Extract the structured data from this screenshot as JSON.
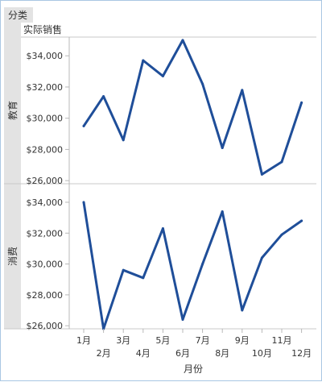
{
  "header": {
    "category_label": "分类",
    "measure_label": "实际销售"
  },
  "colors": {
    "line": "#1f4e99",
    "band": "#e3e3e3",
    "axis": "#b8b8b8",
    "frame": "#a9c7e3"
  },
  "chart_data": {
    "type": "line",
    "xlabel": "月份",
    "ylabel": "",
    "categories": [
      "1月",
      "2月",
      "3月",
      "4月",
      "5月",
      "6月",
      "7月",
      "8月",
      "9月",
      "10月",
      "11月",
      "12月"
    ],
    "ylim": [
      25800,
      35200
    ],
    "yticks": [
      26000,
      28000,
      30000,
      32000,
      34000
    ],
    "ytick_labels": [
      "$26,000",
      "$28,000",
      "$30,000",
      "$32,000",
      "$34,000"
    ],
    "grid": false,
    "panels": [
      {
        "row_label": "教育",
        "values": [
          29500,
          31400,
          28600,
          33700,
          32700,
          35000,
          32200,
          28100,
          31800,
          26400,
          27200,
          31000
        ]
      },
      {
        "row_label": "消费",
        "values": [
          34000,
          25800,
          29600,
          29100,
          32300,
          26400,
          30000,
          33400,
          27000,
          30400,
          31900,
          32800
        ]
      }
    ]
  }
}
